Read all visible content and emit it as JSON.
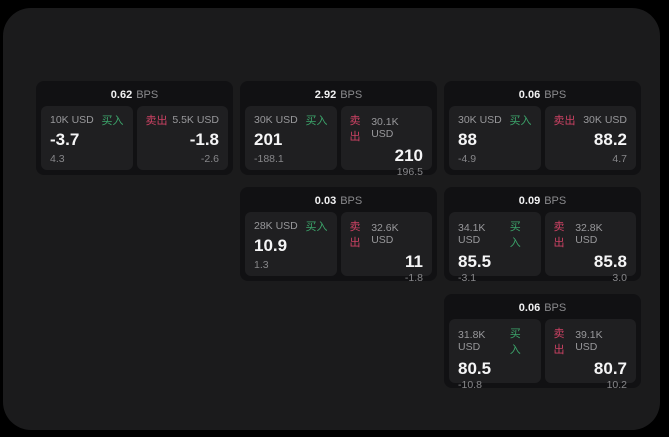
{
  "labels": {
    "bps_unit": "BPS",
    "buy": "买入",
    "sell": "卖出"
  },
  "colors": {
    "buy_green": "#3ca56b",
    "sell_red": "#cd4264",
    "container_bg": "#1b1b1c",
    "card_bg": "#111113",
    "panel_bg": "#1f1f21"
  },
  "cards": [
    {
      "bps": "0.62",
      "buy": {
        "amount": "10K USD",
        "price": "-3.7",
        "change": "4.3"
      },
      "sell": {
        "amount": "5.5K USD",
        "price": "-1.8",
        "change": "-2.6"
      }
    },
    {
      "bps": "2.92",
      "buy": {
        "amount": "30K USD",
        "price": "201",
        "change": "-188.1"
      },
      "sell": {
        "amount": "30.1K USD",
        "price": "210",
        "change": "196.5"
      }
    },
    {
      "bps": "0.06",
      "buy": {
        "amount": "30K USD",
        "price": "88",
        "change": "-4.9"
      },
      "sell": {
        "amount": "30K USD",
        "price": "88.2",
        "change": "4.7"
      }
    },
    {
      "bps": "0.03",
      "buy": {
        "amount": "28K USD",
        "price": "10.9",
        "change": "1.3"
      },
      "sell": {
        "amount": "32.6K USD",
        "price": "11",
        "change": "-1.8"
      }
    },
    {
      "bps": "0.09",
      "buy": {
        "amount": "34.1K USD",
        "price": "85.5",
        "change": "-3.1"
      },
      "sell": {
        "amount": "32.8K USD",
        "price": "85.8",
        "change": "3.0"
      }
    },
    {
      "bps": "0.06",
      "buy": {
        "amount": "31.8K USD",
        "price": "80.5",
        "change": "-10.8"
      },
      "sell": {
        "amount": "39.1K USD",
        "price": "80.7",
        "change": "10.2"
      }
    }
  ]
}
